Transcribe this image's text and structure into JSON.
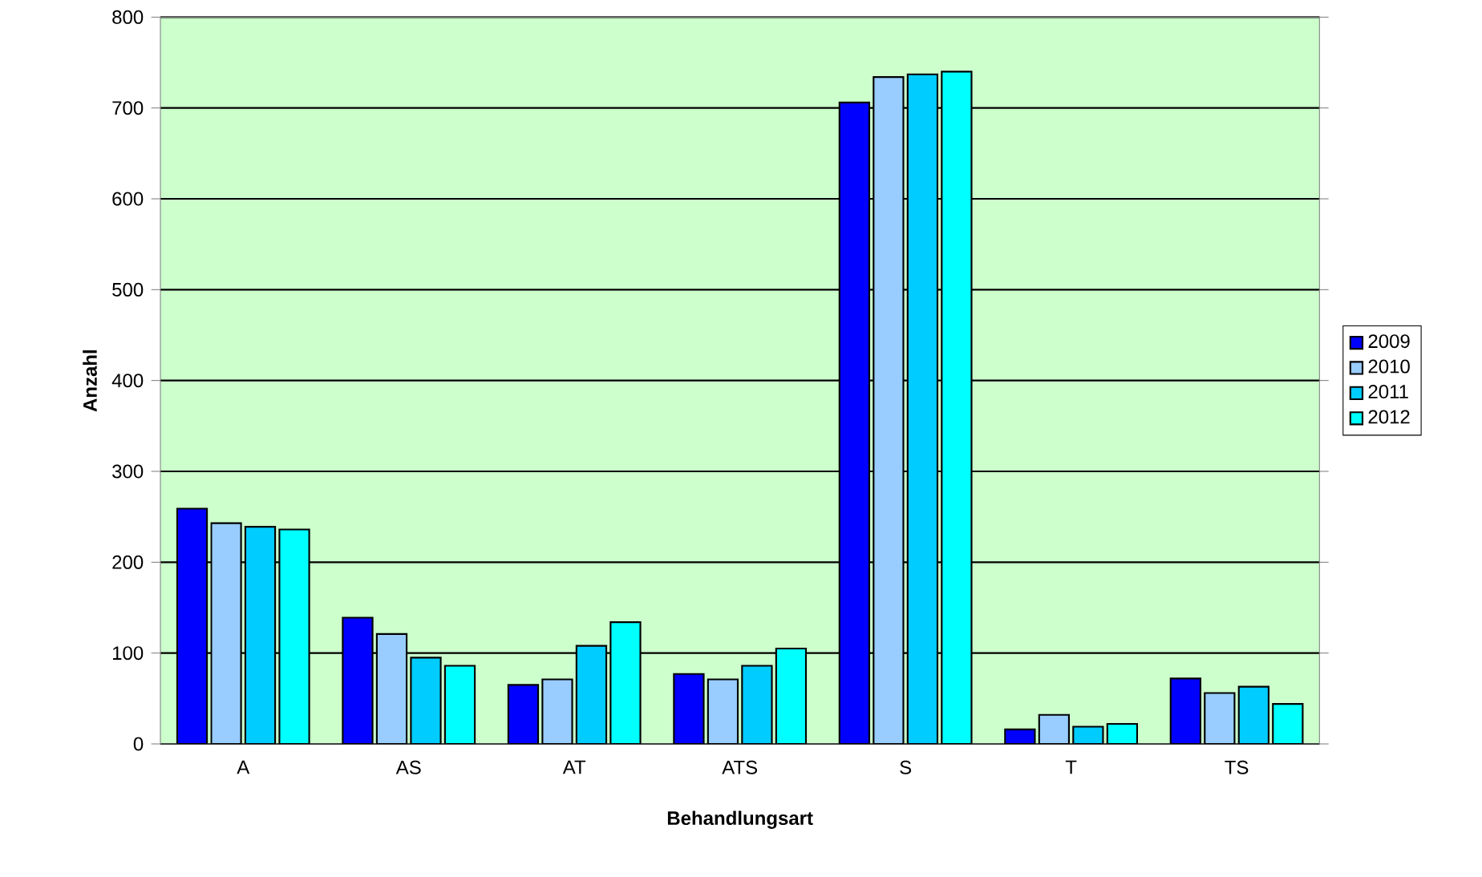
{
  "chart_data": {
    "type": "bar",
    "xlabel": "Behandlungsart",
    "ylabel": "Anzahl",
    "categories": [
      "A",
      "AS",
      "AT",
      "ATS",
      "S",
      "T",
      "TS"
    ],
    "series": [
      {
        "name": "2009",
        "color": "#0000ff",
        "values": [
          259,
          139,
          65,
          77,
          706,
          16,
          72
        ]
      },
      {
        "name": "2010",
        "color": "#99ccff",
        "values": [
          243,
          121,
          71,
          71,
          734,
          32,
          56
        ]
      },
      {
        "name": "2011",
        "color": "#00ccff",
        "values": [
          239,
          95,
          108,
          86,
          737,
          19,
          63
        ]
      },
      {
        "name": "2012",
        "color": "#00ffff",
        "values": [
          236,
          86,
          134,
          105,
          740,
          22,
          44
        ]
      }
    ],
    "ylim": [
      0,
      800
    ],
    "yticks": [
      0,
      100,
      200,
      300,
      400,
      500,
      600,
      700,
      800
    ],
    "grid": "y",
    "legend": "right"
  }
}
